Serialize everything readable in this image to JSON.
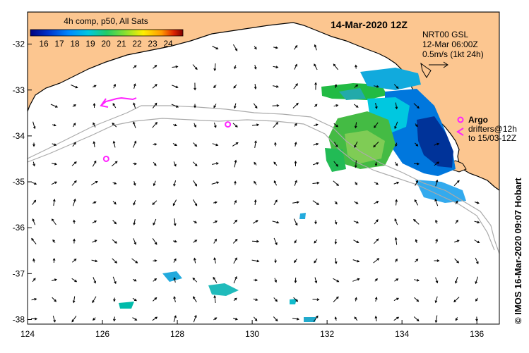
{
  "map": {
    "title": "14-Mar-2020 12Z",
    "colorbar": {
      "label": "4h comp, p50, All Sats",
      "ticks": [
        "16",
        "17",
        "18",
        "19",
        "20",
        "21",
        "22",
        "23",
        "24"
      ],
      "colors": [
        "#00007f",
        "#0033cc",
        "#0088ff",
        "#00c8e0",
        "#22cc66",
        "#88e030",
        "#ffee00",
        "#ff9900",
        "#dd2200",
        "#7f0000"
      ]
    },
    "current_info": {
      "line1": "NRT00 GSL",
      "line2": "12-Mar 06:00Z",
      "line3": "0.5m/s (1kt 24h)"
    },
    "legend": {
      "argo_label": "Argo",
      "drifters_line1": "drifters@12h",
      "drifters_line2": "to 15/03-12Z"
    },
    "credit": "© IMOS 16-Mar-2020 09:07 Hobart",
    "x_axis": {
      "ticks": [
        "124",
        "126",
        "128",
        "130",
        "132",
        "134",
        "136"
      ],
      "range": [
        124,
        136.6
      ]
    },
    "y_axis": {
      "ticks": [
        "-32",
        "-33",
        "-34",
        "-35",
        "-36",
        "-37",
        "-38"
      ],
      "range": [
        -31.3,
        -38.1
      ]
    },
    "argo_floats": [
      {
        "lon": 126.1,
        "lat": -34.5
      },
      {
        "lon": 129.35,
        "lat": -33.75
      }
    ],
    "colors": {
      "land": "#fcc690",
      "ocean": "#ffffff",
      "argo": "#ff22ff",
      "arrows": "#000000",
      "isobath": "#aaaaaa"
    }
  }
}
